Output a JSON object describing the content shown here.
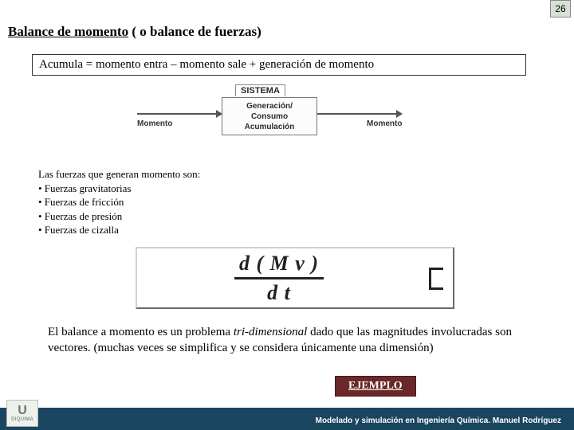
{
  "page_number": "26",
  "title_underlined": "Balance de momento",
  "title_rest": " ( o balance de fuerzas)",
  "formula_box": "Acumula = momento entra – momento sale + generación de momento",
  "diagram": {
    "sistema": "SISTEMA",
    "box_line1": "Generación/",
    "box_line2": "Consumo",
    "box_line3": "Acumulación",
    "label_left": "Momento",
    "label_right": "Momento"
  },
  "forces": {
    "intro": "Las fuerzas que generan momento son:",
    "items": [
      "• Fuerzas gravitatorias",
      "• Fuerzas de fricción",
      "• Fuerzas de presión",
      "• Fuerzas de cizalla"
    ]
  },
  "equation": {
    "top": "d ( M v )",
    "bot": "d t"
  },
  "conclusion_part1": "El balance a momento es un problema ",
  "conclusion_ital": "tri-dimensional",
  "conclusion_part2": " dado que las magnitudes involucradas son vectores. (muchas veces se simplifica y se considera únicamente una dimensión)",
  "ejemplo": "EJEMPLO",
  "footer": "Modelado y simulación en Ingeniería Química.  Manuel Rodríguez",
  "logo_top": "U",
  "logo_bottom": "DIQUIMA"
}
